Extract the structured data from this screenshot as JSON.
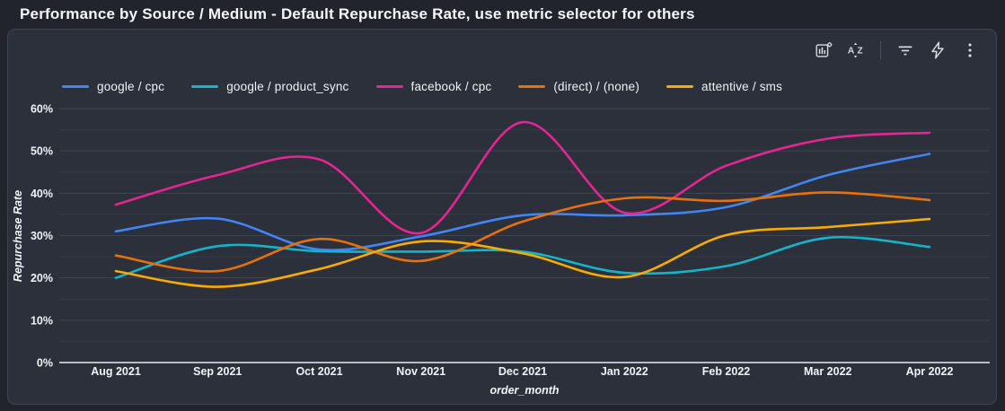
{
  "header": {
    "title": "Performance by Source / Medium - Default Repurchase Rate, use metric selector for others"
  },
  "toolbar": {
    "icons": [
      {
        "name": "optional-metrics-chart-icon"
      },
      {
        "name": "sort-az-icon"
      },
      {
        "name": "filter-icon"
      },
      {
        "name": "quick-actions-lightning-icon"
      },
      {
        "name": "more-options-icon"
      }
    ]
  },
  "chart_data": {
    "type": "line",
    "title": "Performance by Source / Medium",
    "categories": [
      "Aug 2021",
      "Sep 2021",
      "Oct 2021",
      "Nov 2021",
      "Dec 2021",
      "Jan 2022",
      "Feb 2022",
      "Mar 2022",
      "Apr 2022"
    ],
    "series": [
      {
        "name": "google / cpc",
        "color": "#4285f4",
        "values": [
          31.0,
          34.0,
          26.7,
          29.8,
          34.8,
          34.8,
          36.7,
          44.3,
          49.3
        ]
      },
      {
        "name": "google / product_sync",
        "color": "#12b5cb",
        "values": [
          20.0,
          27.5,
          26.3,
          26.2,
          26.2,
          21.2,
          22.8,
          29.5,
          27.3
        ]
      },
      {
        "name": "facebook / cpc",
        "color": "#e52592",
        "values": [
          37.3,
          44.3,
          48.0,
          30.6,
          56.8,
          35.4,
          46.5,
          52.9,
          54.3
        ]
      },
      {
        "name": "(direct) / (none)",
        "color": "#e8710a",
        "values": [
          25.3,
          21.6,
          29.2,
          24.0,
          33.3,
          38.8,
          38.2,
          40.2,
          38.4
        ]
      },
      {
        "name": "attentive / sms",
        "color": "#f9ab00",
        "values": [
          21.6,
          17.9,
          22.1,
          28.6,
          25.8,
          20.2,
          30.1,
          32.0,
          33.9
        ]
      }
    ],
    "xlabel": "order_month",
    "ylabel": "Repurchase Rate",
    "ylim": [
      0,
      60
    ],
    "y_tick_step": 10,
    "y_minor_step": 5,
    "y_ticks": [
      "0%",
      "10%",
      "20%",
      "30%",
      "40%",
      "50%",
      "60%"
    ],
    "grid": "horizontal major every 10%, minor every 5%",
    "legend_position": "top"
  },
  "colors": {
    "page_bg": "#21242d",
    "card_bg": "#2b303b",
    "card_border": "#3e4552",
    "grid_major": "#3e4450",
    "grid_minor": "#353b47",
    "axis_zero_line": "#e8ebf1",
    "text": "#f0f3f7",
    "icon": "#d9dce2"
  }
}
